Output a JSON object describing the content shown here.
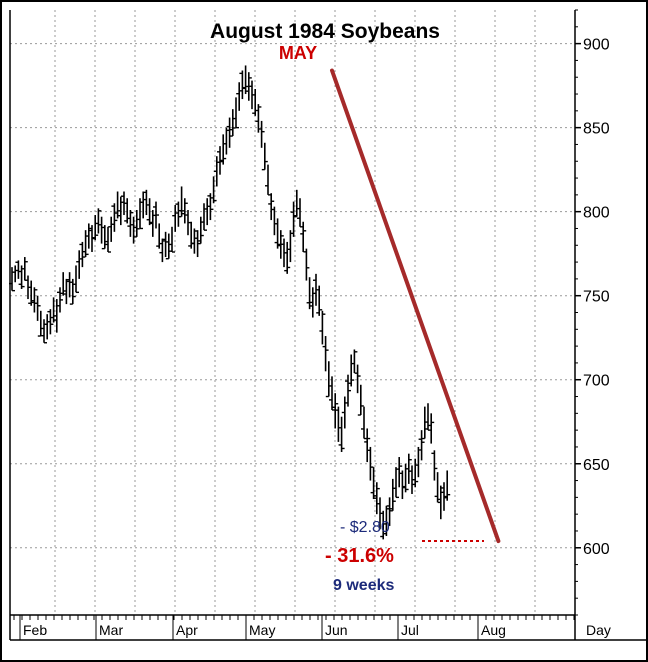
{
  "chart_data": {
    "type": "ohlc",
    "title": "August 1984 Soybeans",
    "ylim": [
      560,
      920
    ],
    "y_ticks": [
      600,
      650,
      700,
      750,
      800,
      850,
      900
    ],
    "x_ticks": [
      "Feb",
      "Mar",
      "Apr",
      "May",
      "Jun",
      "Jul",
      "Aug"
    ],
    "x_axis_label": "Day",
    "grid": true,
    "colors": {
      "bars": "#000000",
      "trendline": "#a52a2a",
      "annotation_red": "#cc0000",
      "annotation_blue": "#1c2a7a",
      "grid": "#9a9a9a"
    },
    "annotations": {
      "peak_label": "MAY",
      "change": "- $2.80",
      "percent": "- 31.6%",
      "duration": "9 weeks"
    },
    "trendline": {
      "from": {
        "bar": 100,
        "price": 884
      },
      "to": {
        "bar": 152,
        "price": 604
      }
    },
    "dotted_level": 604,
    "bars": [
      [
        753,
        767
      ],
      [
        758,
        768
      ],
      [
        760,
        771
      ],
      [
        754,
        768
      ],
      [
        759,
        773
      ],
      [
        748,
        762
      ],
      [
        744,
        759
      ],
      [
        740,
        755
      ],
      [
        735,
        750
      ],
      [
        726,
        741
      ],
      [
        722,
        736
      ],
      [
        724,
        739
      ],
      [
        727,
        742
      ],
      [
        734,
        749
      ],
      [
        728,
        748
      ],
      [
        740,
        755
      ],
      [
        750,
        764
      ],
      [
        745,
        760
      ],
      [
        749,
        764
      ],
      [
        745,
        760
      ],
      [
        752,
        768
      ],
      [
        760,
        777
      ],
      [
        767,
        782
      ],
      [
        773,
        789
      ],
      [
        778,
        793
      ],
      [
        776,
        792
      ],
      [
        783,
        798
      ],
      [
        787,
        802
      ],
      [
        781,
        797
      ],
      [
        778,
        792
      ],
      [
        776,
        791
      ],
      [
        782,
        797
      ],
      [
        788,
        805
      ],
      [
        796,
        812
      ],
      [
        792,
        809
      ],
      [
        798,
        812
      ],
      [
        793,
        808
      ],
      [
        785,
        801
      ],
      [
        781,
        797
      ],
      [
        785,
        801
      ],
      [
        790,
        808
      ],
      [
        796,
        812
      ],
      [
        798,
        813
      ],
      [
        792,
        808
      ],
      [
        785,
        801
      ],
      [
        790,
        806
      ],
      [
        778,
        793
      ],
      [
        770,
        784
      ],
      [
        773,
        788
      ],
      [
        772,
        787
      ],
      [
        776,
        791
      ],
      [
        788,
        804
      ],
      [
        791,
        806
      ],
      [
        797,
        815
      ],
      [
        793,
        808
      ],
      [
        786,
        801
      ],
      [
        778,
        794
      ],
      [
        775,
        790
      ],
      [
        773,
        789
      ],
      [
        781,
        797
      ],
      [
        789,
        805
      ],
      [
        792,
        808
      ],
      [
        795,
        811
      ],
      [
        805,
        821
      ],
      [
        815,
        833
      ],
      [
        822,
        839
      ],
      [
        828,
        846
      ],
      [
        834,
        850
      ],
      [
        838,
        856
      ],
      [
        845,
        861
      ],
      [
        850,
        868
      ],
      [
        860,
        877
      ],
      [
        867,
        884
      ],
      [
        870,
        887
      ],
      [
        866,
        883
      ],
      [
        861,
        878
      ],
      [
        857,
        873
      ],
      [
        847,
        864
      ],
      [
        838,
        854
      ],
      [
        825,
        841
      ],
      [
        810,
        828
      ],
      [
        795,
        811
      ],
      [
        786,
        803
      ],
      [
        778,
        796
      ],
      [
        772,
        789
      ],
      [
        767,
        784
      ],
      [
        763,
        782
      ],
      [
        770,
        789
      ],
      [
        785,
        806
      ],
      [
        797,
        813
      ],
      [
        791,
        808
      ],
      [
        776,
        794
      ],
      [
        759,
        778
      ],
      [
        742,
        761
      ],
      [
        737,
        755
      ],
      [
        744,
        763
      ],
      [
        738,
        756
      ],
      [
        721,
        741
      ],
      [
        705,
        726
      ],
      [
        690,
        711
      ],
      [
        682,
        702
      ],
      [
        671,
        692
      ],
      [
        663,
        684
      ],
      [
        657,
        678
      ],
      [
        671,
        690
      ],
      [
        684,
        703
      ],
      [
        696,
        715
      ],
      [
        704,
        718
      ],
      [
        692,
        709
      ],
      [
        679,
        697
      ],
      [
        665,
        684
      ],
      [
        651,
        671
      ],
      [
        640,
        660
      ],
      [
        629,
        648
      ],
      [
        620,
        639
      ],
      [
        611,
        630
      ],
      [
        605,
        622
      ],
      [
        607,
        625
      ],
      [
        613,
        630
      ],
      [
        622,
        641
      ],
      [
        630,
        648
      ],
      [
        636,
        654
      ],
      [
        629,
        646
      ],
      [
        633,
        650
      ],
      [
        638,
        656
      ],
      [
        632,
        649
      ],
      [
        636,
        653
      ],
      [
        642,
        660
      ],
      [
        652,
        670
      ],
      [
        665,
        684
      ],
      [
        670,
        686
      ],
      [
        662,
        680
      ],
      [
        640,
        658
      ],
      [
        627,
        645
      ],
      [
        617,
        637
      ],
      [
        622,
        639
      ],
      [
        628,
        646
      ]
    ]
  }
}
